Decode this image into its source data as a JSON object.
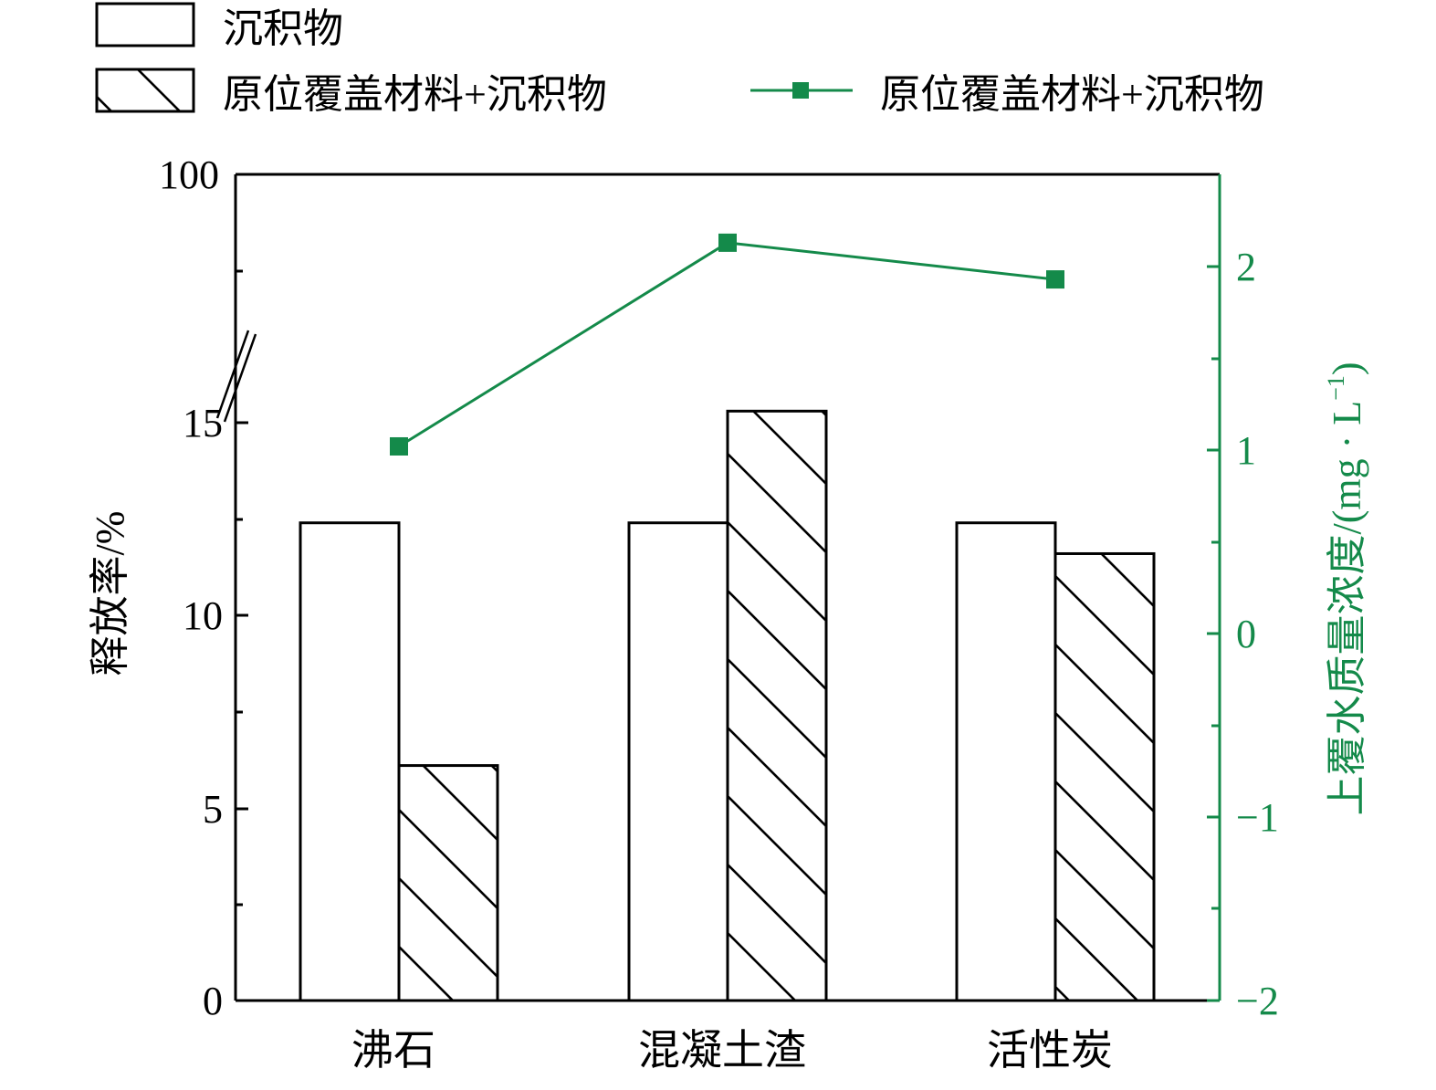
{
  "legend": {
    "items": [
      {
        "label": "沉积物",
        "kind": "bar-plain"
      },
      {
        "label": "原位覆盖材料+沉积物",
        "kind": "bar-hatched"
      },
      {
        "label": "原位覆盖材料+沉积物",
        "kind": "line-marker"
      }
    ]
  },
  "colors": {
    "axis": "#000000",
    "line": "#148a4a",
    "bar_fill": "#ffffff"
  },
  "chart_data": {
    "type": "bar",
    "categories": [
      "沸石",
      "混凝土渣",
      "活性炭"
    ],
    "series": [
      {
        "name": "沉积物",
        "type": "bar",
        "axis": "left",
        "style": "plain",
        "values": [
          12.4,
          12.4,
          12.4
        ]
      },
      {
        "name": "原位覆盖材料+沉积物",
        "type": "bar",
        "axis": "left",
        "style": "hatched",
        "values": [
          6.1,
          15.3,
          11.6
        ]
      },
      {
        "name": "原位覆盖材料+沉积物",
        "type": "line",
        "axis": "right",
        "marker": "square",
        "values": [
          1.02,
          2.13,
          1.93
        ]
      }
    ],
    "ylabel": "释放率/%",
    "y2label": "上覆水质量浓度/(mg · L",
    "y2label_sup": "−1",
    "y2label_close": ")",
    "y_axis": {
      "broken": true,
      "ticks": [
        "0",
        "5",
        "10",
        "15",
        "100"
      ],
      "lower_range": [
        0,
        15.5
      ],
      "upper_tick": 100
    },
    "y2_axis": {
      "ylim": [
        -2,
        2.5
      ],
      "ticks": [
        "−2",
        "−1",
        "0",
        "1",
        "2"
      ],
      "tick_values": [
        -2,
        -1,
        0,
        1,
        2
      ]
    },
    "grid": false,
    "legend_position": "top"
  }
}
